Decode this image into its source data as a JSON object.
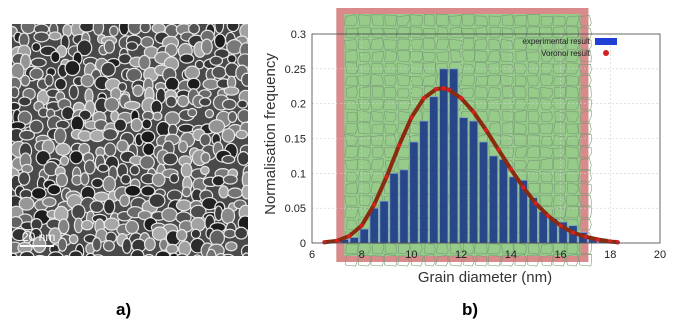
{
  "figure": {
    "panel_a_label": "a)",
    "panel_b_label": "b)",
    "scale_bar_text": "20 nm"
  },
  "chart_data": {
    "type": "bar",
    "xlabel": "Grain diameter (nm)",
    "ylabel": "Normalisation frequency",
    "xlim": [
      6,
      20
    ],
    "ylim": [
      0,
      0.3
    ],
    "x_ticks": [
      "6",
      "8",
      "10",
      "12",
      "14",
      "16",
      "18",
      "20"
    ],
    "y_ticks": [
      "0",
      "0.05",
      "0.1",
      "0.15",
      "0.2",
      "0.25",
      "0.3"
    ],
    "legend": {
      "position": "top-right",
      "entries": [
        {
          "label": "experimental result",
          "color": "#1f3fd6"
        },
        {
          "label": "Voronoi result",
          "color": "#d61f1f"
        }
      ]
    },
    "grid": true,
    "series": [
      {
        "name": "experimental result",
        "kind": "bar",
        "x": [
          6.9,
          7.3,
          7.7,
          8.1,
          8.5,
          8.9,
          9.3,
          9.7,
          10.1,
          10.5,
          10.9,
          11.3,
          11.7,
          12.1,
          12.5,
          12.9,
          13.3,
          13.7,
          14.1,
          14.5,
          14.9,
          15.3,
          15.7,
          16.1,
          16.5,
          16.9,
          17.3,
          17.7,
          18.1
        ],
        "values": [
          0.002,
          0.005,
          0.008,
          0.02,
          0.05,
          0.06,
          0.1,
          0.105,
          0.145,
          0.175,
          0.21,
          0.25,
          0.25,
          0.18,
          0.175,
          0.145,
          0.125,
          0.12,
          0.095,
          0.09,
          0.065,
          0.045,
          0.035,
          0.03,
          0.025,
          0.015,
          0.008,
          0.006,
          0.004
        ]
      },
      {
        "name": "Voronoi result",
        "kind": "line",
        "x": [
          6.5,
          7.0,
          7.5,
          8.0,
          8.5,
          9.0,
          9.5,
          10.0,
          10.5,
          11.0,
          11.3,
          11.5,
          12.0,
          12.5,
          13.0,
          13.5,
          14.0,
          14.5,
          15.0,
          15.5,
          16.0,
          16.5,
          17.0,
          17.5,
          18.0,
          18.3
        ],
        "values": [
          0.001,
          0.003,
          0.01,
          0.025,
          0.055,
          0.095,
          0.14,
          0.18,
          0.208,
          0.221,
          0.222,
          0.22,
          0.208,
          0.188,
          0.162,
          0.134,
          0.106,
          0.08,
          0.057,
          0.039,
          0.025,
          0.015,
          0.009,
          0.005,
          0.002,
          0.001
        ]
      }
    ]
  },
  "colors": {
    "bar_fill": "#1f3c88",
    "bar_edge": "#7fa0d0",
    "curve": "#8b2a0f",
    "overlay_green": "#8ed18a",
    "overlay_border": "#d98a8a"
  }
}
